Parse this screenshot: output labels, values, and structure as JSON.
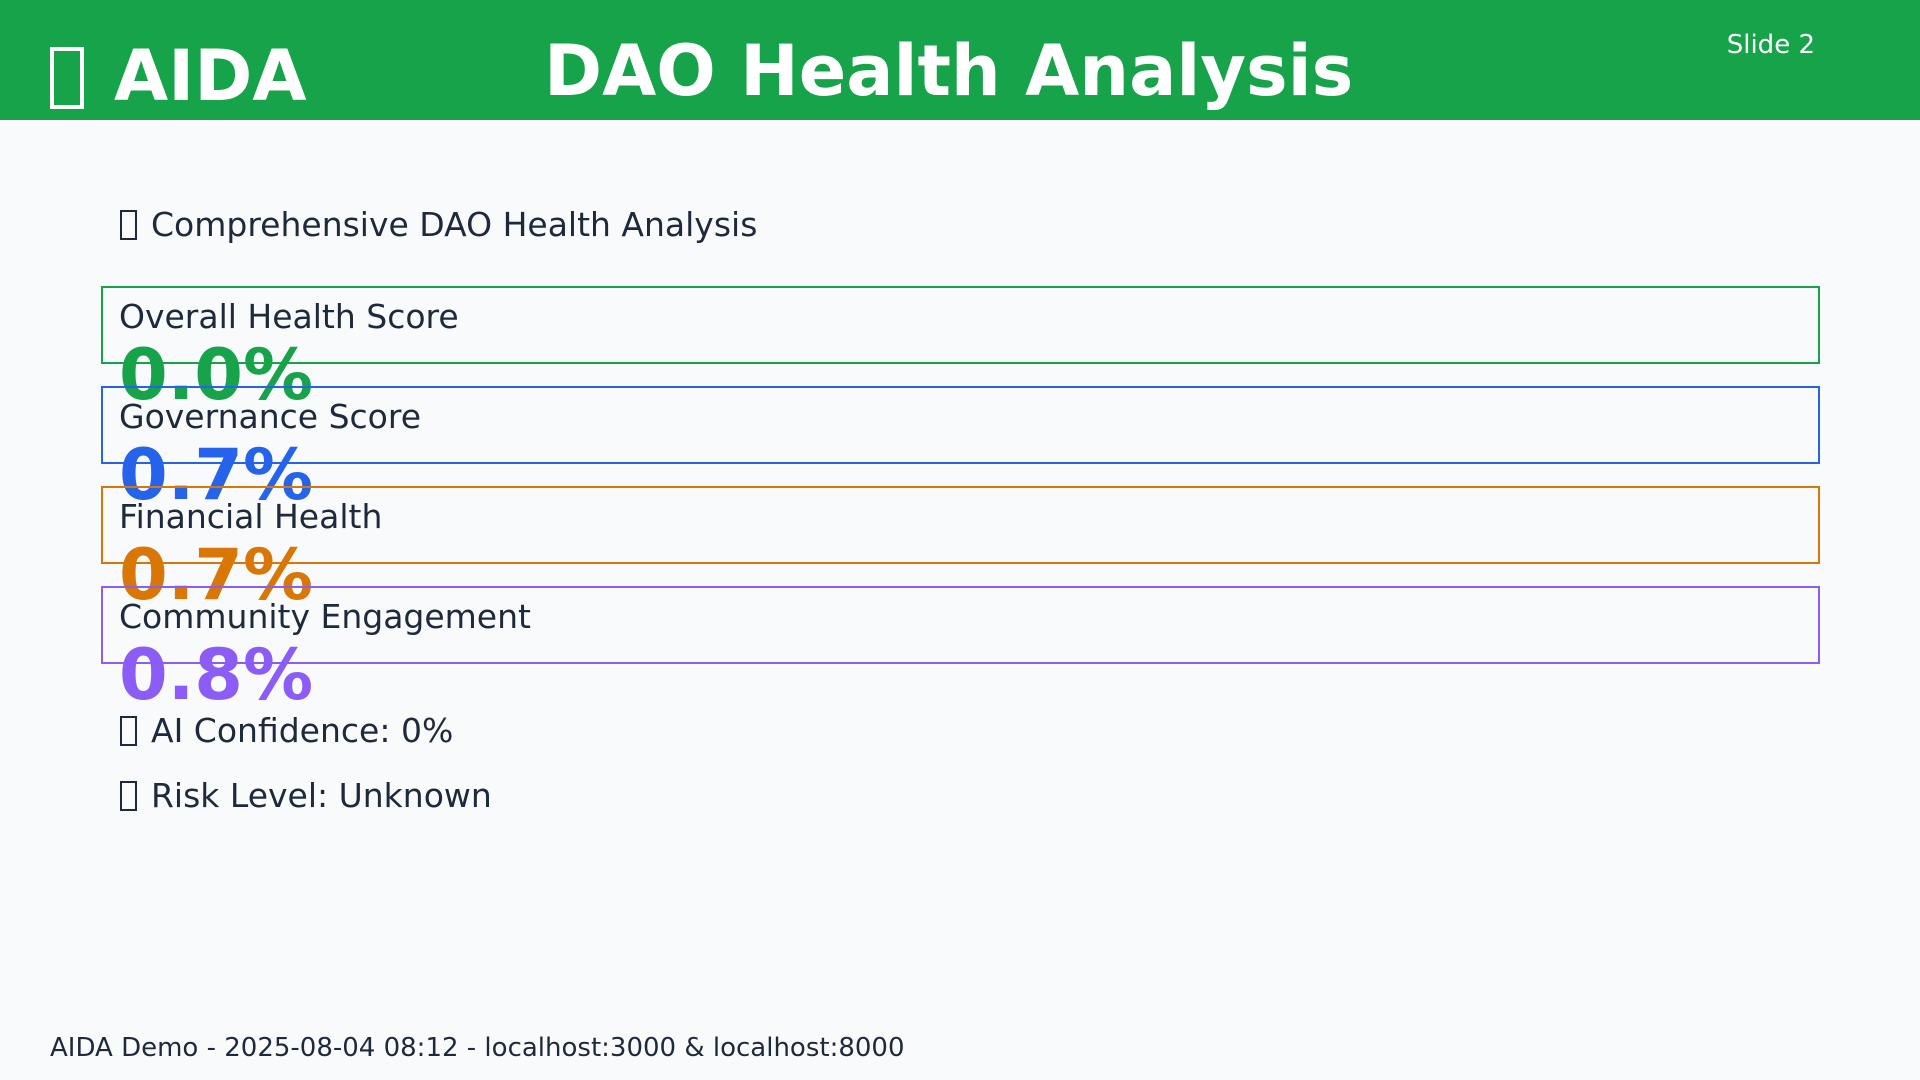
{
  "header": {
    "brand": "AIDA",
    "brand_icon": "missing-glyph-icon",
    "title": "DAO Health Analysis",
    "slide_label": "Slide 2",
    "background_color": "#16a34a"
  },
  "subtitle": {
    "icon": "missing-glyph-icon",
    "text": "Comprehensive DAO Health Analysis"
  },
  "metrics": [
    {
      "label": "Overall Health Score",
      "value": "0.0%",
      "color": "#16a34a"
    },
    {
      "label": "Governance Score",
      "value": "0.7%",
      "color": "#2563eb"
    },
    {
      "label": "Financial Health",
      "value": "0.7%",
      "color": "#d97706"
    },
    {
      "label": "Community Engagement",
      "value": "0.8%",
      "color": "#8b5cf6"
    }
  ],
  "details": {
    "confidence": {
      "icon": "missing-glyph-icon",
      "text": "AI Confidence: 0%"
    },
    "risk": {
      "icon": "missing-glyph-icon",
      "text": "Risk Level: Unknown"
    }
  },
  "footer": {
    "text": "AIDA Demo - 2025-08-04 08:12 - localhost:3000 & localhost:8000"
  }
}
